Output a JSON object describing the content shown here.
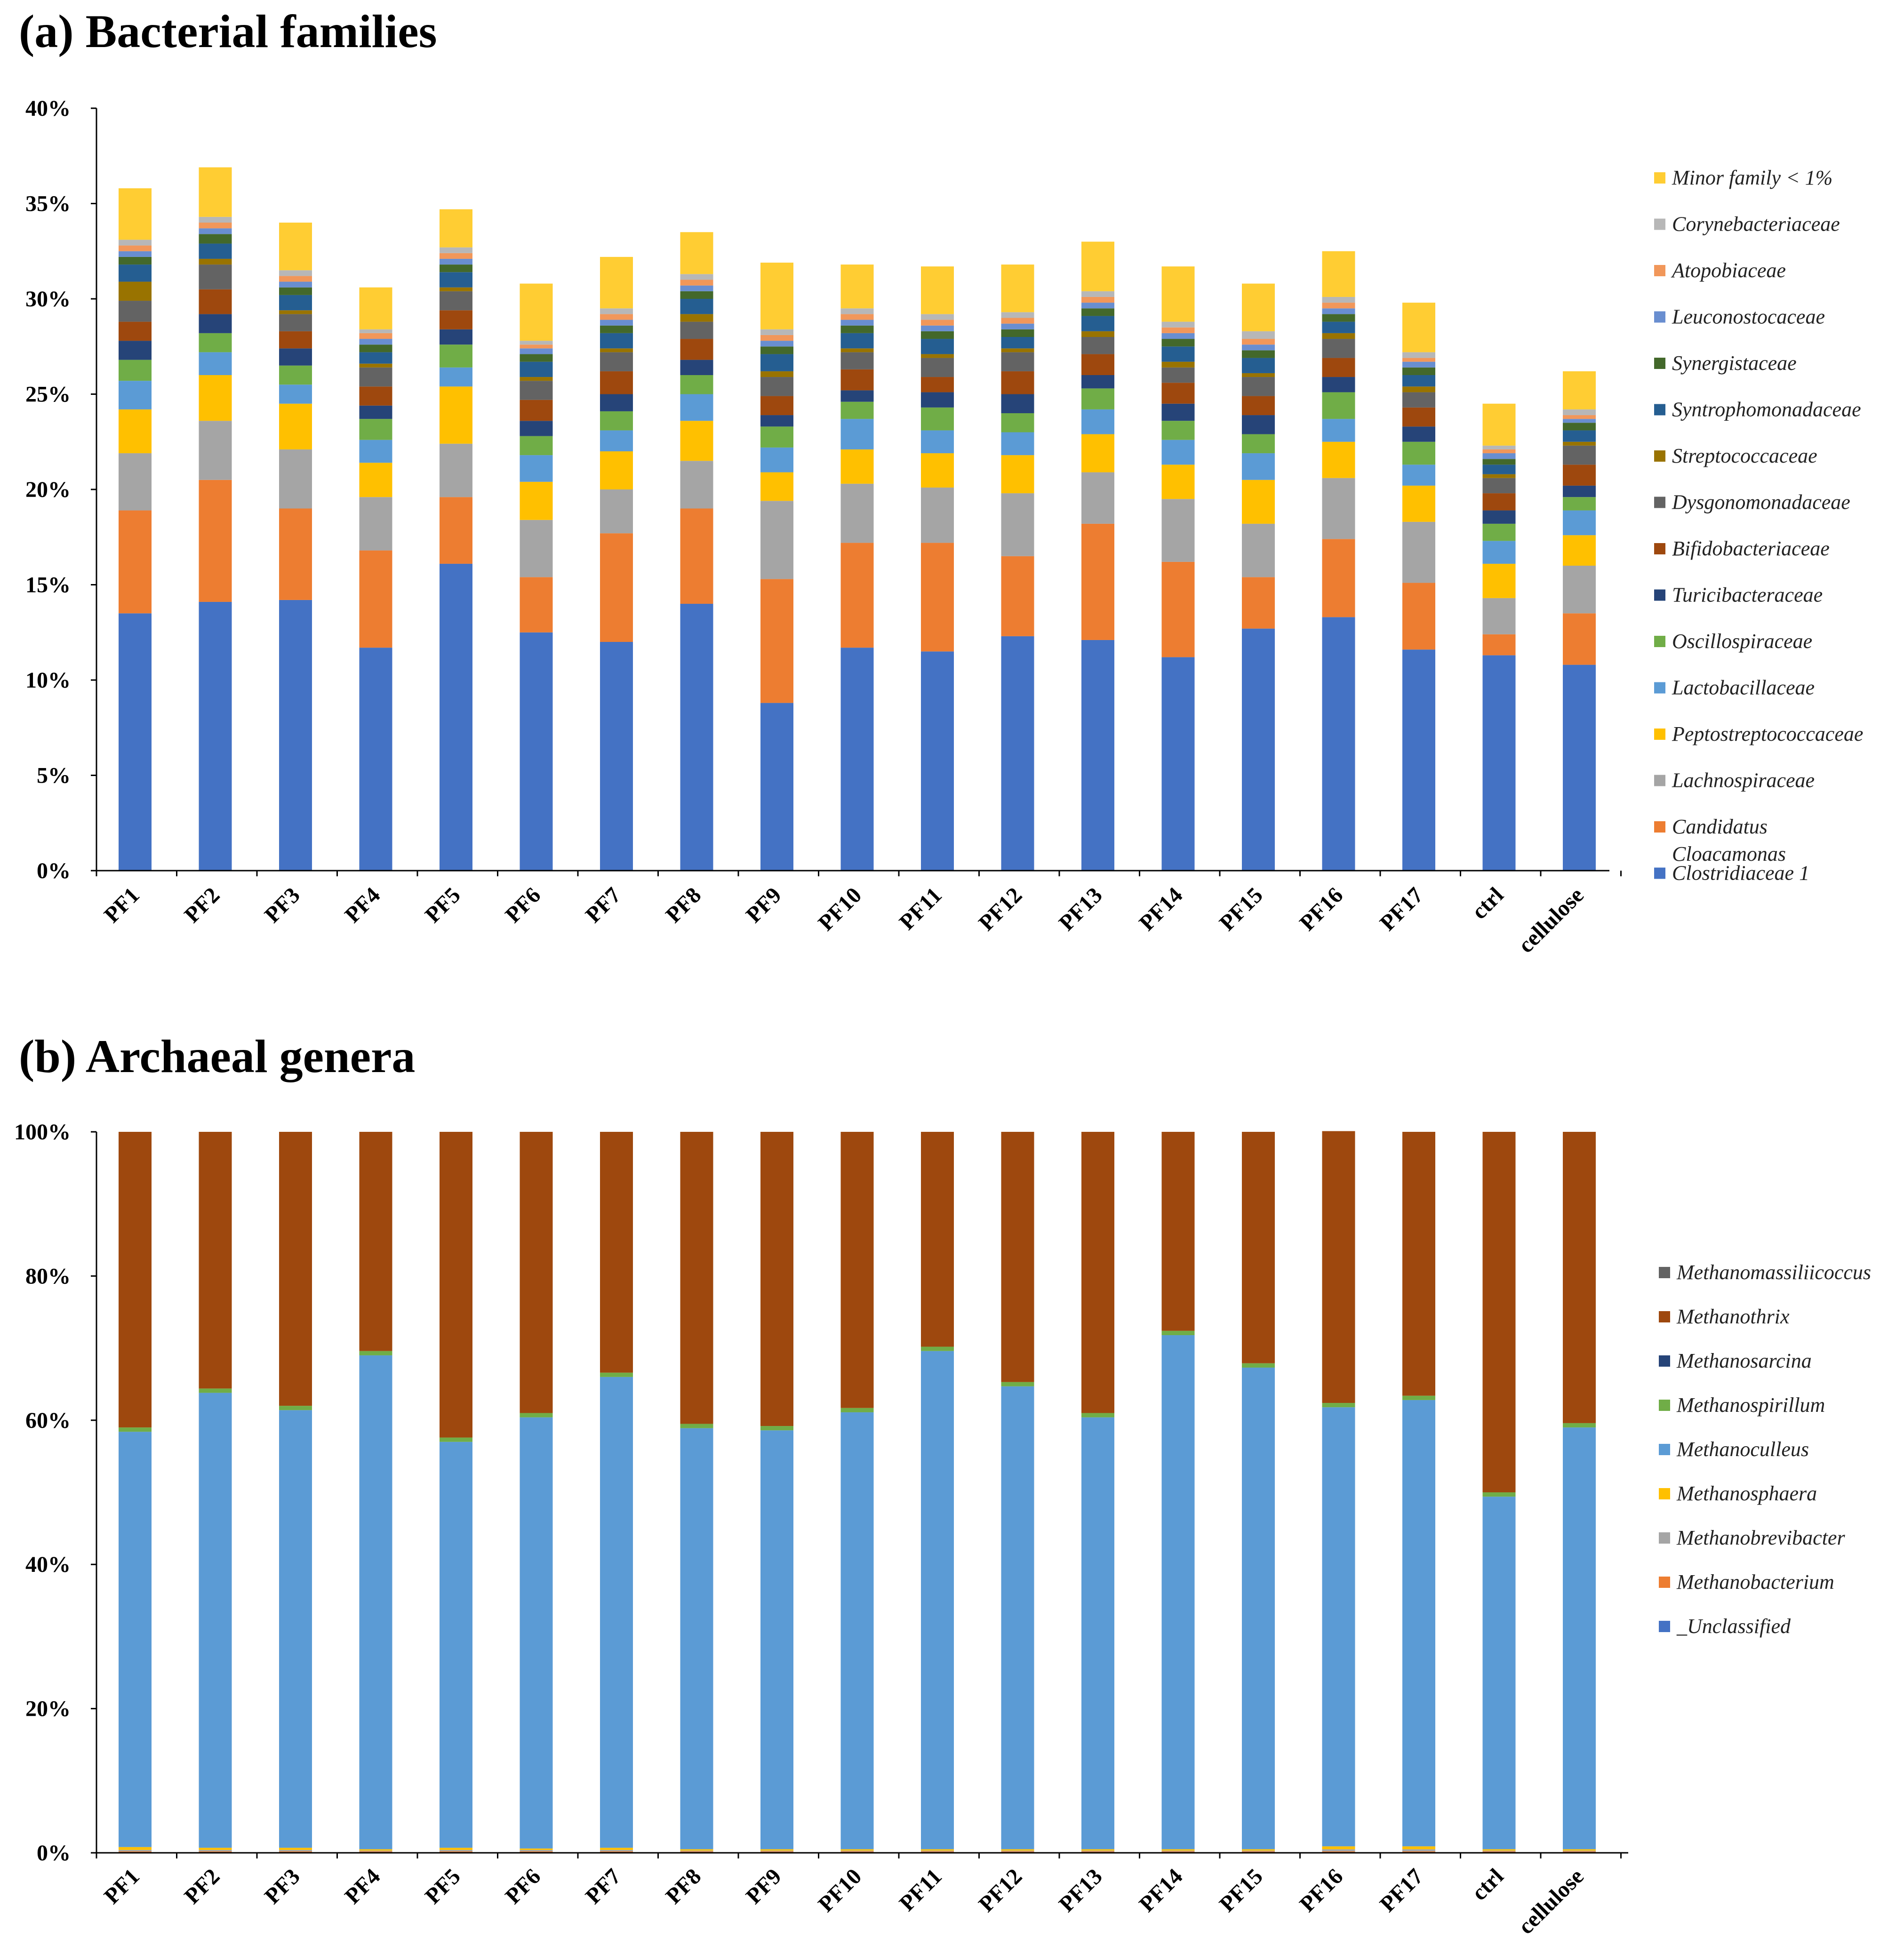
{
  "colors": {
    "Clostridiaceae 1": "#4472C4",
    "Candidatus Cloacamonas": "#ED7D31",
    "Lachnospiraceae": "#A5A5A5",
    "Peptostreptococcaceae": "#FFC000",
    "Lactobacillaceae": "#5B9BD5",
    "Oscillospiraceae": "#70AD47",
    "Turicibacteraceae": "#264478",
    "Bifidobacteriaceae": "#9E480E",
    "Dysgonomonadaceae": "#636363",
    "Streptococcaceae": "#997300",
    "Syntrophomonadaceae": "#255E91",
    "Synergistaceae": "#43682B",
    "Leuconostocaceae": "#698ED0",
    "Atopobiaceae": "#F1975A",
    "Corynebacteriaceae": "#B7B7B7",
    "Minor family < 1%": "#FFCD33",
    "_Unclassified": "#4472C4",
    "Methanobacterium": "#ED7D31",
    "Methanobrevibacter": "#A5A5A5",
    "Methanosphaera": "#FFC000",
    "Methanoculleus": "#5B9BD5",
    "Methanospirillum": "#70AD47",
    "Methanosarcina": "#264478",
    "Methanothrix": "#9E480E",
    "Methanomassiliicoccus": "#636363"
  },
  "chart_data": [
    {
      "type": "bar",
      "stacked": true,
      "title": "(a) Bacterial families",
      "xlabel": "",
      "ylabel": "",
      "ylim": [
        0,
        40
      ],
      "yticks": [
        "0%",
        "5%",
        "10%",
        "15%",
        "20%",
        "25%",
        "30%",
        "35%",
        "40%"
      ],
      "categories": [
        "PF1",
        "PF2",
        "PF3",
        "PF4",
        "PF5",
        "PF6",
        "PF7",
        "PF8",
        "PF9",
        "PF10",
        "PF11",
        "PF12",
        "PF13",
        "PF14",
        "PF15",
        "PF16",
        "PF17",
        "ctrl",
        "cellulose"
      ],
      "legend_labels": [
        "Minor family < 1%",
        "Corynebacteriaceae",
        "Atopobiaceae",
        "Leuconostocaceae",
        "Synergistaceae",
        "Syntrophomonadaceae",
        "Streptococcaceae",
        "Dysgonomonadaceae",
        "Bifidobacteriaceae",
        "Turicibacteraceae",
        "Oscillospiraceae",
        "Lactobacillaceae",
        "Peptostreptococcaceae",
        "Lachnospiraceae",
        "Candidatus Cloacamonas",
        "Clostridiaceae 1"
      ],
      "series": [
        {
          "name": "Clostridiaceae 1",
          "values": [
            13.5,
            14.1,
            14.2,
            11.7,
            16.1,
            12.5,
            12.0,
            14.0,
            8.8,
            11.7,
            11.5,
            12.3,
            12.1,
            11.2,
            12.7,
            13.3,
            11.6,
            11.3,
            10.8
          ]
        },
        {
          "name": "Candidatus Cloacamonas",
          "values": [
            5.4,
            6.4,
            4.8,
            5.1,
            3.5,
            2.9,
            5.7,
            5.0,
            6.5,
            5.5,
            5.7,
            4.2,
            6.1,
            5.0,
            2.7,
            4.1,
            3.5,
            1.1,
            2.7
          ]
        },
        {
          "name": "Lachnospiraceae",
          "values": [
            3.0,
            3.1,
            3.1,
            2.8,
            2.8,
            3.0,
            2.3,
            2.5,
            4.1,
            3.1,
            2.9,
            3.3,
            2.7,
            3.3,
            2.8,
            3.2,
            3.2,
            1.9,
            2.5
          ]
        },
        {
          "name": "Peptostreptococcaceae",
          "values": [
            2.3,
            2.4,
            2.4,
            1.8,
            3.0,
            2.0,
            2.0,
            2.1,
            1.5,
            1.8,
            1.8,
            2.0,
            2.0,
            1.8,
            2.3,
            1.9,
            1.9,
            1.8,
            1.6
          ]
        },
        {
          "name": "Lactobacillaceae",
          "values": [
            1.5,
            1.2,
            1.0,
            1.2,
            1.0,
            1.4,
            1.1,
            1.4,
            1.3,
            1.6,
            1.2,
            1.2,
            1.3,
            1.3,
            1.4,
            1.2,
            1.1,
            1.2,
            1.3
          ]
        },
        {
          "name": "Oscillospiraceae",
          "values": [
            1.1,
            1.0,
            1.0,
            1.1,
            1.2,
            1.0,
            1.0,
            1.0,
            1.1,
            0.9,
            1.2,
            1.0,
            1.1,
            1.0,
            1.0,
            1.4,
            1.2,
            0.9,
            0.7
          ]
        },
        {
          "name": "Turicibacteraceae",
          "values": [
            1.0,
            1.0,
            0.9,
            0.7,
            0.8,
            0.8,
            0.9,
            0.8,
            0.6,
            0.6,
            0.8,
            1.0,
            0.7,
            0.9,
            1.0,
            0.8,
            0.8,
            0.7,
            0.6
          ]
        },
        {
          "name": "Bifidobacteriaceae",
          "values": [
            1.0,
            1.3,
            0.9,
            1.0,
            1.0,
            1.1,
            1.2,
            1.1,
            1.0,
            1.1,
            0.8,
            1.2,
            1.1,
            1.1,
            1.0,
            1.0,
            1.0,
            0.9,
            1.1
          ]
        },
        {
          "name": "Dysgonomonadaceae",
          "values": [
            1.1,
            1.3,
            0.9,
            1.0,
            1.0,
            1.0,
            1.0,
            0.9,
            1.0,
            0.9,
            1.0,
            1.0,
            0.9,
            0.8,
            1.0,
            1.0,
            0.8,
            0.8,
            1.0
          ]
        },
        {
          "name": "Streptococcaceae",
          "values": [
            1.0,
            0.3,
            0.2,
            0.2,
            0.2,
            0.2,
            0.2,
            0.4,
            0.3,
            0.2,
            0.2,
            0.2,
            0.3,
            0.3,
            0.2,
            0.3,
            0.3,
            0.2,
            0.2
          ]
        },
        {
          "name": "Syntrophomonadaceae",
          "values": [
            0.9,
            0.8,
            0.8,
            0.6,
            0.8,
            0.8,
            0.8,
            0.8,
            0.9,
            0.8,
            0.8,
            0.6,
            0.8,
            0.8,
            0.8,
            0.6,
            0.6,
            0.5,
            0.6
          ]
        },
        {
          "name": "Synergistaceae",
          "values": [
            0.4,
            0.5,
            0.4,
            0.4,
            0.4,
            0.4,
            0.4,
            0.4,
            0.4,
            0.4,
            0.4,
            0.4,
            0.4,
            0.4,
            0.4,
            0.4,
            0.4,
            0.3,
            0.4
          ]
        },
        {
          "name": "Leuconostocaceae",
          "values": [
            0.3,
            0.3,
            0.3,
            0.3,
            0.3,
            0.3,
            0.3,
            0.3,
            0.3,
            0.3,
            0.3,
            0.3,
            0.3,
            0.3,
            0.3,
            0.3,
            0.3,
            0.3,
            0.2
          ]
        },
        {
          "name": "Atopobiaceae",
          "values": [
            0.3,
            0.3,
            0.3,
            0.3,
            0.3,
            0.2,
            0.3,
            0.3,
            0.3,
            0.3,
            0.3,
            0.3,
            0.3,
            0.3,
            0.3,
            0.3,
            0.2,
            0.2,
            0.2
          ]
        },
        {
          "name": "Corynebacteriaceae",
          "values": [
            0.3,
            0.3,
            0.3,
            0.2,
            0.3,
            0.2,
            0.3,
            0.3,
            0.3,
            0.3,
            0.3,
            0.3,
            0.3,
            0.3,
            0.4,
            0.3,
            0.3,
            0.2,
            0.3
          ]
        },
        {
          "name": "Minor family < 1%",
          "values": [
            2.7,
            2.6,
            2.5,
            2.2,
            2.0,
            3.0,
            2.7,
            2.2,
            3.5,
            2.3,
            2.5,
            2.5,
            2.6,
            2.9,
            2.5,
            2.4,
            2.6,
            2.2,
            2.0
          ]
        }
      ]
    },
    {
      "type": "bar",
      "stacked": true,
      "title": "(b) Archaeal genera",
      "xlabel": "",
      "ylabel": "",
      "ylim": [
        0,
        100
      ],
      "yticks": [
        "0%",
        "20%",
        "40%",
        "60%",
        "80%",
        "100%"
      ],
      "categories": [
        "PF1",
        "PF2",
        "PF3",
        "PF4",
        "PF5",
        "PF6",
        "PF7",
        "PF8",
        "PF9",
        "PF10",
        "PF11",
        "PF12",
        "PF13",
        "PF14",
        "PF15",
        "PF16",
        "PF17",
        "ctrl",
        "cellulose"
      ],
      "legend_labels": [
        "Methanomassiliicoccus",
        "Methanothrix",
        "Methanosarcina",
        "Methanospirillum",
        "Methanoculleus",
        "Methanosphaera",
        "Methanobrevibacter",
        "Methanobacterium",
        "_Unclassified"
      ],
      "series": [
        {
          "name": "_Unclassified",
          "values": [
            0.1,
            0.1,
            0.1,
            0.1,
            0.1,
            0.1,
            0.1,
            0.1,
            0.1,
            0.1,
            0.1,
            0.1,
            0.1,
            0.1,
            0.1,
            0.1,
            0.1,
            0.1,
            0.1
          ]
        },
        {
          "name": "Methanobacterium",
          "values": [
            0.1,
            0.1,
            0.1,
            0.1,
            0.1,
            0.1,
            0.1,
            0.1,
            0.1,
            0.1,
            0.1,
            0.1,
            0.1,
            0.1,
            0.1,
            0.1,
            0.1,
            0.1,
            0.1
          ]
        },
        {
          "name": "Methanobrevibacter",
          "values": [
            0.2,
            0.2,
            0.2,
            0.1,
            0.2,
            0.2,
            0.2,
            0.1,
            0.1,
            0.1,
            0.1,
            0.1,
            0.1,
            0.1,
            0.1,
            0.3,
            0.3,
            0.1,
            0.1
          ]
        },
        {
          "name": "Methanosphaera",
          "values": [
            0.4,
            0.3,
            0.3,
            0.2,
            0.3,
            0.2,
            0.3,
            0.2,
            0.2,
            0.2,
            0.2,
            0.2,
            0.2,
            0.2,
            0.2,
            0.4,
            0.4,
            0.2,
            0.2
          ]
        },
        {
          "name": "Methanoculleus",
          "values": [
            57.6,
            63.1,
            60.7,
            68.5,
            56.3,
            59.8,
            65.3,
            58.4,
            58.1,
            60.6,
            69.1,
            64.2,
            59.9,
            71.3,
            66.8,
            60.9,
            61.9,
            48.9,
            58.5
          ]
        },
        {
          "name": "Methanospirillum",
          "values": [
            0.6,
            0.6,
            0.6,
            0.6,
            0.6,
            0.6,
            0.6,
            0.6,
            0.6,
            0.6,
            0.6,
            0.6,
            0.6,
            0.6,
            0.6,
            0.6,
            0.6,
            0.6,
            0.6
          ]
        },
        {
          "name": "Methanosarcina",
          "values": [
            0.0,
            0.0,
            0.0,
            0.0,
            0.0,
            0.0,
            0.0,
            0.0,
            0.0,
            0.0,
            0.0,
            0.0,
            0.0,
            0.0,
            0.0,
            0.0,
            0.0,
            0.0,
            0.0
          ]
        },
        {
          "name": "Methanothrix",
          "values": [
            41.0,
            35.6,
            38.0,
            30.4,
            42.4,
            39.0,
            33.4,
            40.5,
            40.8,
            38.3,
            29.8,
            34.7,
            39.0,
            27.6,
            32.1,
            37.7,
            36.6,
            50.0,
            40.4
          ]
        },
        {
          "name": "Methanomassiliicoccus",
          "values": [
            0.0,
            0.0,
            0.0,
            0.0,
            0.0,
            0.0,
            0.0,
            0.0,
            0.0,
            0.0,
            0.0,
            0.0,
            0.0,
            0.0,
            0.0,
            0.0,
            0.0,
            0.0,
            0.0
          ]
        }
      ]
    }
  ]
}
